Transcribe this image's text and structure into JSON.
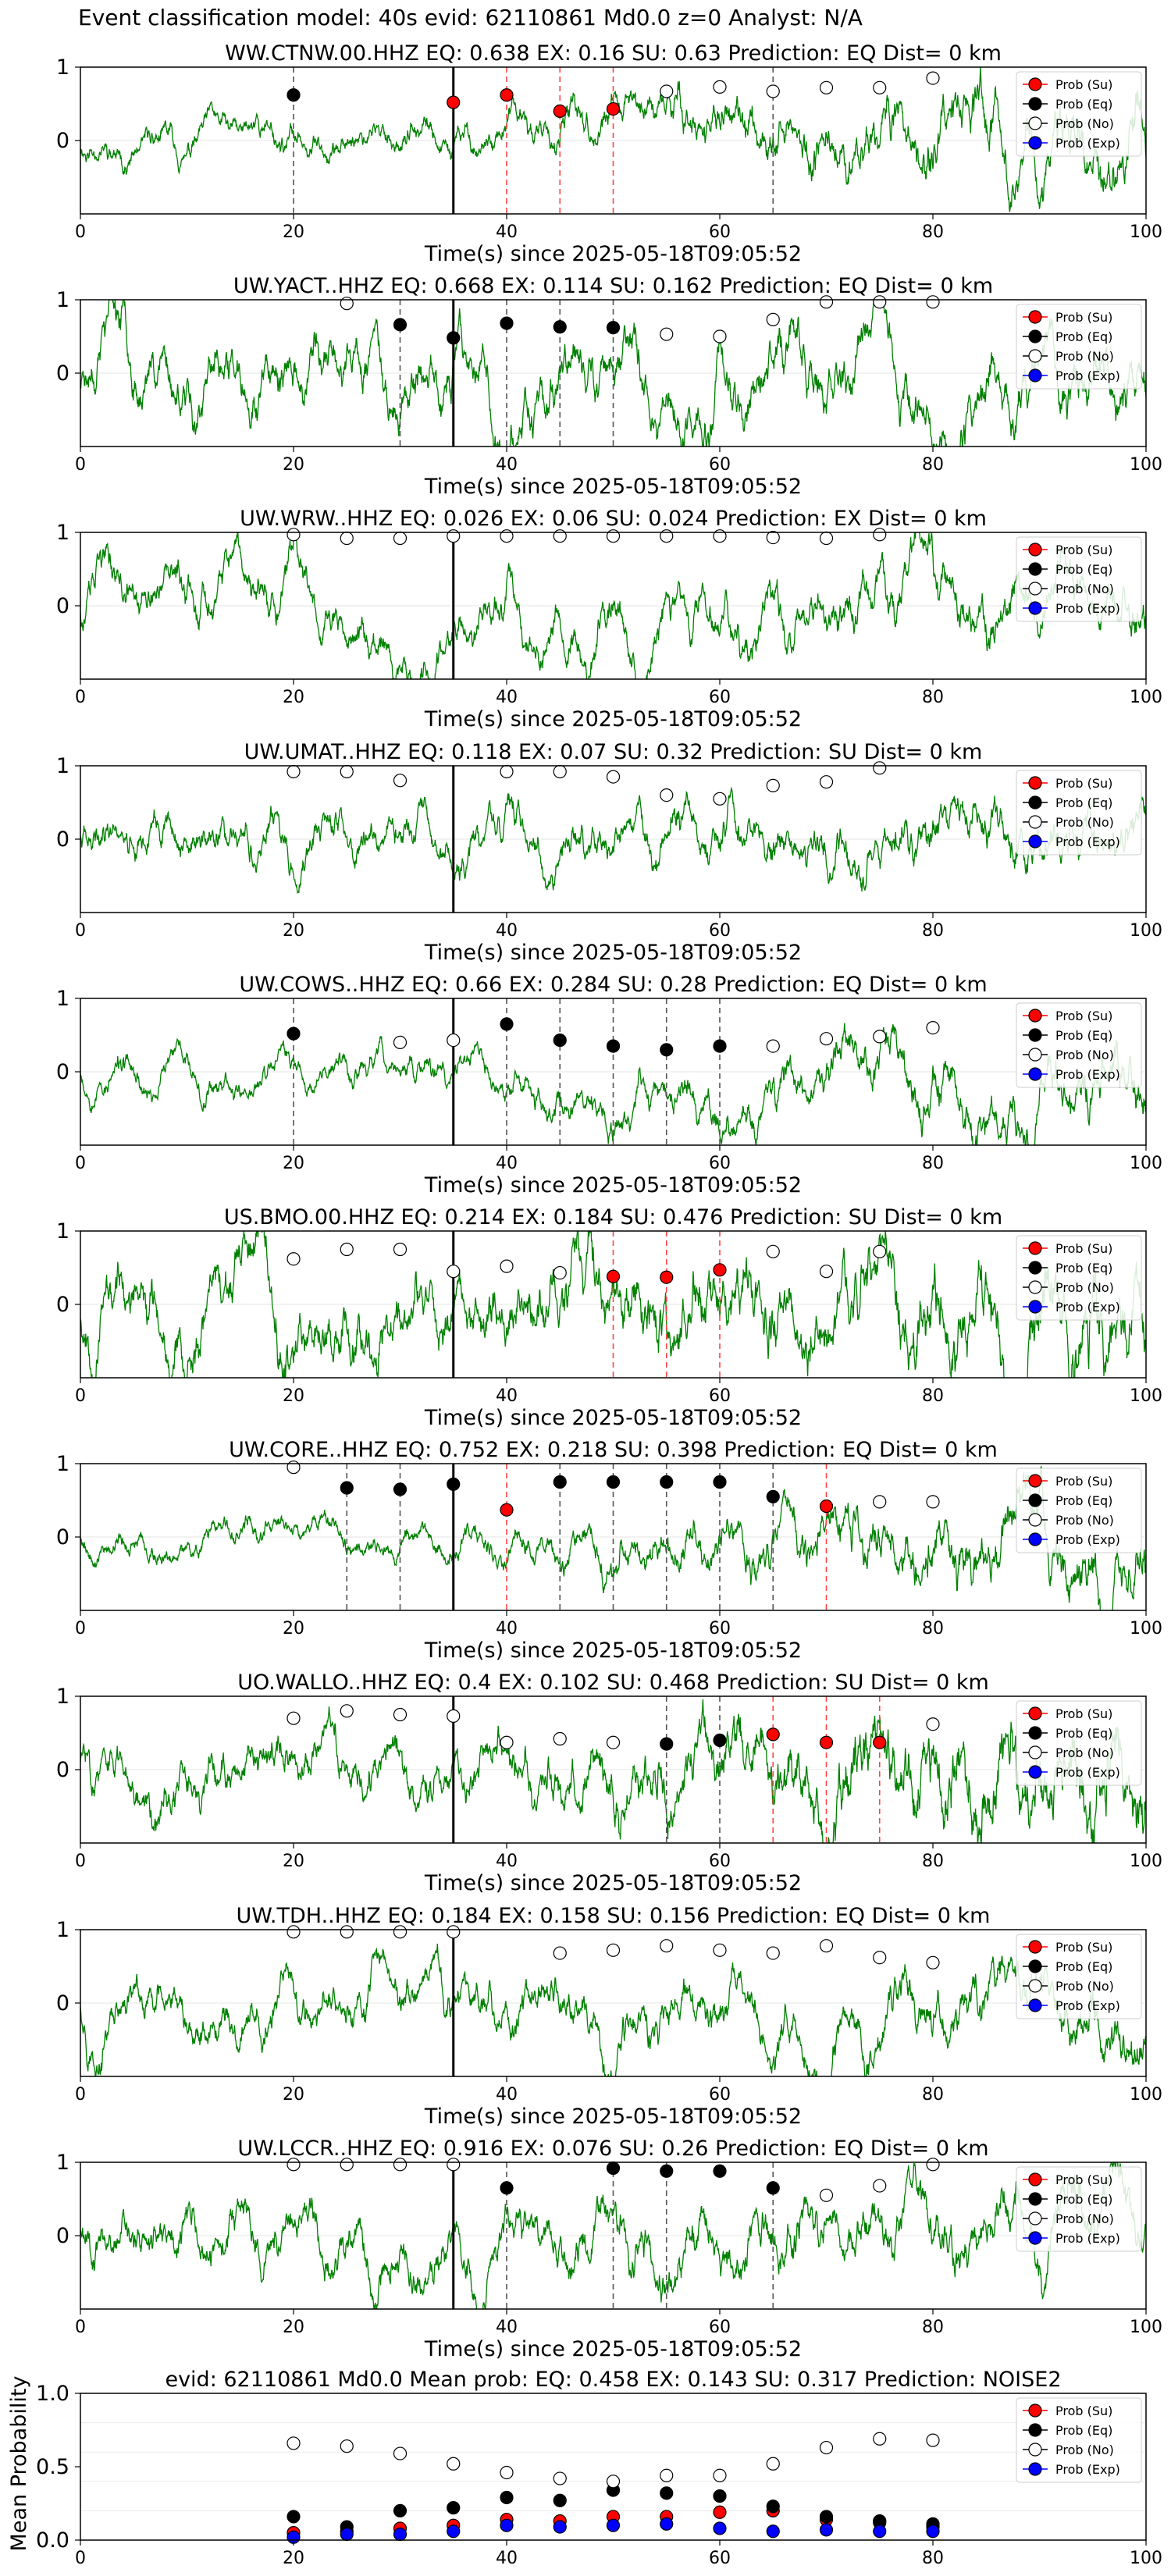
{
  "suptitle": "Event classification model: 40s evid: 62110861 Md0.0 z=0 Analyst: N/A",
  "common": {
    "xlabel": "Time(s) since 2025-05-18T09:05:52",
    "xlim": [
      0,
      100
    ],
    "xticks": [
      0,
      20,
      40,
      60,
      80,
      100
    ],
    "marker_times": [
      20,
      25,
      30,
      35,
      40,
      45,
      50,
      55,
      60,
      65,
      70,
      75,
      80
    ],
    "arrival_time": 35,
    "legend": [
      "Prob (Su)",
      "Prob (Eq)",
      "Prob (No)",
      "Prob (Exp)"
    ],
    "legend_position": "top-right",
    "colors": {
      "su": "#ff0000",
      "eq": "#000000",
      "no": "#ffffff",
      "exp": "#0000ff",
      "trace": "#008000",
      "eq_line": "#555555",
      "su_line": "#ff4444"
    }
  },
  "chart_data": [
    {
      "type": "line",
      "title": "WW.CTNW.00.HHZ   EQ: 0.638  EX: 0.16  SU: 0.63   Prediction: EQ    Dist= 0 km",
      "yticks": [
        0,
        1
      ],
      "ylim": [
        -1,
        1
      ],
      "trace": {
        "amplitude": 0.32,
        "seed": 11,
        "growth": 1.5,
        "hf": 0.5
      },
      "points": [
        {
          "t": 20,
          "cls": "eq",
          "p": 0.62
        },
        {
          "t": 35,
          "cls": "su",
          "p": 0.52
        },
        {
          "t": 40,
          "cls": "su",
          "p": 0.62
        },
        {
          "t": 45,
          "cls": "su",
          "p": 0.4
        },
        {
          "t": 50,
          "cls": "su",
          "p": 0.43
        },
        {
          "t": 55,
          "cls": "no",
          "p": 0.67
        },
        {
          "t": 60,
          "cls": "no",
          "p": 0.73
        },
        {
          "t": 65,
          "cls": "no",
          "p": 0.67
        },
        {
          "t": 70,
          "cls": "no",
          "p": 0.72
        },
        {
          "t": 75,
          "cls": "no",
          "p": 0.72
        },
        {
          "t": 80,
          "cls": "no",
          "p": 0.85
        }
      ],
      "eq_lines": [
        20,
        65
      ],
      "su_lines": [
        40,
        45,
        50
      ]
    },
    {
      "type": "line",
      "title": "UW.YACT..HHZ   EQ: 0.668  EX: 0.114  SU: 0.162   Prediction: EQ    Dist= 0 km",
      "yticks": [
        0,
        1
      ],
      "ylim": [
        -1,
        1
      ],
      "trace": {
        "amplitude": 0.75,
        "seed": 23,
        "growth": 0.2,
        "hf": 0.15
      },
      "points": [
        {
          "t": 25,
          "cls": "no",
          "p": 0.95
        },
        {
          "t": 30,
          "cls": "eq",
          "p": 0.66
        },
        {
          "t": 35,
          "cls": "eq",
          "p": 0.48
        },
        {
          "t": 40,
          "cls": "eq",
          "p": 0.68
        },
        {
          "t": 45,
          "cls": "eq",
          "p": 0.63
        },
        {
          "t": 50,
          "cls": "eq",
          "p": 0.62
        },
        {
          "t": 55,
          "cls": "no",
          "p": 0.53
        },
        {
          "t": 60,
          "cls": "no",
          "p": 0.5
        },
        {
          "t": 65,
          "cls": "no",
          "p": 0.73
        },
        {
          "t": 70,
          "cls": "no",
          "p": 0.97
        },
        {
          "t": 75,
          "cls": "no",
          "p": 0.97
        },
        {
          "t": 80,
          "cls": "no",
          "p": 0.97
        }
      ],
      "eq_lines": [
        30,
        40,
        45,
        50
      ],
      "su_lines": []
    },
    {
      "type": "line",
      "title": "UW.WRW..HHZ   EQ: 0.026  EX: 0.06  SU: 0.024   Prediction: EX    Dist= 0 km",
      "yticks": [
        0,
        1
      ],
      "ylim": [
        -1,
        1
      ],
      "trace": {
        "amplitude": 0.6,
        "seed": 37,
        "growth": 0.2,
        "hf": 0.25
      },
      "points": [
        {
          "t": 20,
          "cls": "no",
          "p": 0.97
        },
        {
          "t": 25,
          "cls": "no",
          "p": 0.92
        },
        {
          "t": 30,
          "cls": "no",
          "p": 0.92
        },
        {
          "t": 35,
          "cls": "no",
          "p": 0.95
        },
        {
          "t": 40,
          "cls": "no",
          "p": 0.95
        },
        {
          "t": 45,
          "cls": "no",
          "p": 0.95
        },
        {
          "t": 50,
          "cls": "no",
          "p": 0.95
        },
        {
          "t": 55,
          "cls": "no",
          "p": 0.95
        },
        {
          "t": 60,
          "cls": "no",
          "p": 0.95
        },
        {
          "t": 65,
          "cls": "no",
          "p": 0.93
        },
        {
          "t": 70,
          "cls": "no",
          "p": 0.92
        },
        {
          "t": 75,
          "cls": "no",
          "p": 0.97
        }
      ],
      "eq_lines": [],
      "su_lines": []
    },
    {
      "type": "line",
      "title": "UW.UMAT..HHZ   EQ: 0.118  EX: 0.07  SU: 0.32   Prediction: SU    Dist= 0 km",
      "yticks": [
        0,
        1
      ],
      "ylim": [
        -1,
        1
      ],
      "trace": {
        "amplitude": 0.5,
        "seed": 41,
        "growth": 0.3,
        "hf": 0.3
      },
      "points": [
        {
          "t": 20,
          "cls": "no",
          "p": 0.92
        },
        {
          "t": 25,
          "cls": "no",
          "p": 0.92
        },
        {
          "t": 30,
          "cls": "no",
          "p": 0.8
        },
        {
          "t": 40,
          "cls": "no",
          "p": 0.92
        },
        {
          "t": 45,
          "cls": "no",
          "p": 0.92
        },
        {
          "t": 50,
          "cls": "no",
          "p": 0.85
        },
        {
          "t": 55,
          "cls": "no",
          "p": 0.6
        },
        {
          "t": 60,
          "cls": "no",
          "p": 0.55
        },
        {
          "t": 65,
          "cls": "no",
          "p": 0.73
        },
        {
          "t": 70,
          "cls": "no",
          "p": 0.78
        },
        {
          "t": 75,
          "cls": "no",
          "p": 0.97
        }
      ],
      "eq_lines": [],
      "su_lines": []
    },
    {
      "type": "line",
      "title": "UW.COWS..HHZ   EQ: 0.66  EX: 0.284  SU: 0.28   Prediction: EQ    Dist= 0 km",
      "yticks": [
        0,
        1
      ],
      "ylim": [
        -1,
        1
      ],
      "trace": {
        "amplitude": 0.35,
        "seed": 53,
        "growth": 1.2,
        "hf": 0.4
      },
      "points": [
        {
          "t": 20,
          "cls": "eq",
          "p": 0.52
        },
        {
          "t": 30,
          "cls": "no",
          "p": 0.4
        },
        {
          "t": 35,
          "cls": "no",
          "p": 0.43
        },
        {
          "t": 40,
          "cls": "eq",
          "p": 0.65
        },
        {
          "t": 45,
          "cls": "eq",
          "p": 0.43
        },
        {
          "t": 50,
          "cls": "eq",
          "p": 0.35
        },
        {
          "t": 55,
          "cls": "eq",
          "p": 0.3
        },
        {
          "t": 60,
          "cls": "eq",
          "p": 0.35
        },
        {
          "t": 65,
          "cls": "no",
          "p": 0.35
        },
        {
          "t": 70,
          "cls": "no",
          "p": 0.45
        },
        {
          "t": 75,
          "cls": "no",
          "p": 0.48
        },
        {
          "t": 80,
          "cls": "no",
          "p": 0.6
        }
      ],
      "eq_lines": [
        20,
        40,
        45,
        50,
        55,
        60
      ],
      "su_lines": []
    },
    {
      "type": "line",
      "title": "US.BMO.00.HHZ   EQ: 0.214  EX: 0.184  SU: 0.476   Prediction: SU    Dist= 0 km",
      "yticks": [
        0,
        1
      ],
      "ylim": [
        -1,
        1
      ],
      "trace": {
        "amplitude": 0.55,
        "seed": 67,
        "growth": 0.6,
        "hf": 0.8
      },
      "points": [
        {
          "t": 20,
          "cls": "no",
          "p": 0.62
        },
        {
          "t": 25,
          "cls": "no",
          "p": 0.75
        },
        {
          "t": 30,
          "cls": "no",
          "p": 0.75
        },
        {
          "t": 35,
          "cls": "no",
          "p": 0.45
        },
        {
          "t": 40,
          "cls": "no",
          "p": 0.52
        },
        {
          "t": 45,
          "cls": "no",
          "p": 0.43
        },
        {
          "t": 50,
          "cls": "su",
          "p": 0.38
        },
        {
          "t": 55,
          "cls": "su",
          "p": 0.37
        },
        {
          "t": 60,
          "cls": "su",
          "p": 0.47
        },
        {
          "t": 65,
          "cls": "no",
          "p": 0.72
        },
        {
          "t": 70,
          "cls": "no",
          "p": 0.45
        },
        {
          "t": 75,
          "cls": "no",
          "p": 0.72
        }
      ],
      "eq_lines": [],
      "su_lines": [
        50,
        55,
        60
      ]
    },
    {
      "type": "line",
      "title": "UW.CORE..HHZ   EQ: 0.752  EX: 0.218  SU: 0.398   Prediction: EQ    Dist= 0 km",
      "yticks": [
        0,
        1
      ],
      "ylim": [
        -1,
        1
      ],
      "trace": {
        "amplitude": 0.28,
        "seed": 79,
        "growth": 2.0,
        "hf": 0.5
      },
      "points": [
        {
          "t": 20,
          "cls": "no",
          "p": 0.95
        },
        {
          "t": 25,
          "cls": "eq",
          "p": 0.67
        },
        {
          "t": 30,
          "cls": "eq",
          "p": 0.65
        },
        {
          "t": 35,
          "cls": "eq",
          "p": 0.72
        },
        {
          "t": 40,
          "cls": "su",
          "p": 0.37
        },
        {
          "t": 45,
          "cls": "eq",
          "p": 0.75
        },
        {
          "t": 50,
          "cls": "eq",
          "p": 0.75
        },
        {
          "t": 55,
          "cls": "eq",
          "p": 0.75
        },
        {
          "t": 60,
          "cls": "eq",
          "p": 0.75
        },
        {
          "t": 65,
          "cls": "eq",
          "p": 0.55
        },
        {
          "t": 70,
          "cls": "su",
          "p": 0.42
        },
        {
          "t": 75,
          "cls": "no",
          "p": 0.48
        },
        {
          "t": 80,
          "cls": "no",
          "p": 0.48
        }
      ],
      "eq_lines": [
        25,
        30,
        45,
        50,
        55,
        60,
        65
      ],
      "su_lines": [
        40,
        70
      ]
    },
    {
      "type": "line",
      "title": "UO.WALLO..HHZ   EQ: 0.4  EX: 0.102  SU: 0.468   Prediction: SU    Dist= 0 km",
      "yticks": [
        0,
        1
      ],
      "ylim": [
        -1,
        1
      ],
      "trace": {
        "amplitude": 0.42,
        "seed": 83,
        "growth": 1.3,
        "hf": 0.8
      },
      "points": [
        {
          "t": 20,
          "cls": "no",
          "p": 0.7
        },
        {
          "t": 25,
          "cls": "no",
          "p": 0.8
        },
        {
          "t": 30,
          "cls": "no",
          "p": 0.75
        },
        {
          "t": 35,
          "cls": "no",
          "p": 0.73
        },
        {
          "t": 40,
          "cls": "no",
          "p": 0.37
        },
        {
          "t": 45,
          "cls": "no",
          "p": 0.42
        },
        {
          "t": 50,
          "cls": "no",
          "p": 0.37
        },
        {
          "t": 55,
          "cls": "eq",
          "p": 0.35
        },
        {
          "t": 60,
          "cls": "eq",
          "p": 0.4
        },
        {
          "t": 65,
          "cls": "su",
          "p": 0.48
        },
        {
          "t": 70,
          "cls": "su",
          "p": 0.37
        },
        {
          "t": 75,
          "cls": "su",
          "p": 0.37
        },
        {
          "t": 80,
          "cls": "no",
          "p": 0.62
        }
      ],
      "eq_lines": [
        55,
        60
      ],
      "su_lines": [
        65,
        70,
        75
      ]
    },
    {
      "type": "line",
      "title": "UW.TDH..HHZ   EQ: 0.184  EX: 0.158  SU: 0.156   Prediction: EQ    Dist= 0 km",
      "yticks": [
        0,
        1
      ],
      "ylim": [
        -1,
        1
      ],
      "trace": {
        "amplitude": 0.55,
        "seed": 97,
        "growth": 0.4,
        "hf": 0.3
      },
      "points": [
        {
          "t": 20,
          "cls": "no",
          "p": 0.97
        },
        {
          "t": 25,
          "cls": "no",
          "p": 0.97
        },
        {
          "t": 30,
          "cls": "no",
          "p": 0.97
        },
        {
          "t": 35,
          "cls": "no",
          "p": 0.97
        },
        {
          "t": 45,
          "cls": "no",
          "p": 0.68
        },
        {
          "t": 50,
          "cls": "no",
          "p": 0.72
        },
        {
          "t": 55,
          "cls": "no",
          "p": 0.78
        },
        {
          "t": 60,
          "cls": "no",
          "p": 0.72
        },
        {
          "t": 65,
          "cls": "no",
          "p": 0.68
        },
        {
          "t": 70,
          "cls": "no",
          "p": 0.78
        },
        {
          "t": 75,
          "cls": "no",
          "p": 0.62
        },
        {
          "t": 80,
          "cls": "no",
          "p": 0.55
        }
      ],
      "eq_lines": [],
      "su_lines": []
    },
    {
      "type": "line",
      "title": "UW.LCCR..HHZ   EQ: 0.916  EX: 0.076  SU: 0.26   Prediction: EQ    Dist= 0 km",
      "yticks": [
        0,
        1
      ],
      "ylim": [
        -1,
        1
      ],
      "trace": {
        "amplitude": 0.6,
        "seed": 101,
        "growth": 0.3,
        "hf": 0.3
      },
      "points": [
        {
          "t": 20,
          "cls": "no",
          "p": 0.97
        },
        {
          "t": 25,
          "cls": "no",
          "p": 0.97
        },
        {
          "t": 30,
          "cls": "no",
          "p": 0.97
        },
        {
          "t": 35,
          "cls": "no",
          "p": 0.97
        },
        {
          "t": 40,
          "cls": "eq",
          "p": 0.65
        },
        {
          "t": 50,
          "cls": "eq",
          "p": 0.92
        },
        {
          "t": 55,
          "cls": "eq",
          "p": 0.88
        },
        {
          "t": 60,
          "cls": "eq",
          "p": 0.88
        },
        {
          "t": 65,
          "cls": "eq",
          "p": 0.65
        },
        {
          "t": 70,
          "cls": "no",
          "p": 0.55
        },
        {
          "t": 75,
          "cls": "no",
          "p": 0.68
        },
        {
          "t": 80,
          "cls": "no",
          "p": 0.97
        }
      ],
      "eq_lines": [
        40,
        50,
        55,
        65
      ],
      "su_lines": []
    }
  ],
  "mean_chart": {
    "type": "scatter",
    "title": "evid: 62110861  Md0.0   Mean prob:   EQ: 0.458  EX: 0.143  SU: 0.317   Prediction: NOISE2",
    "ylabel": "Mean Probability",
    "xticks": [
      0,
      20,
      40,
      60,
      80,
      100
    ],
    "yticks": [
      0.0,
      0.5,
      1.0
    ],
    "ylim": [
      0,
      1
    ],
    "xlim": [
      0,
      100
    ],
    "x": [
      20,
      25,
      30,
      35,
      40,
      45,
      50,
      55,
      60,
      65,
      70,
      75,
      80
    ],
    "series": [
      {
        "name": "Prob (Su)",
        "cls": "su",
        "values": [
          0.05,
          0.06,
          0.08,
          0.1,
          0.14,
          0.13,
          0.16,
          0.16,
          0.19,
          0.2,
          0.14,
          0.12,
          0.09
        ]
      },
      {
        "name": "Prob (Eq)",
        "cls": "eq",
        "values": [
          0.16,
          0.09,
          0.2,
          0.22,
          0.29,
          0.27,
          0.34,
          0.32,
          0.3,
          0.23,
          0.16,
          0.13,
          0.11
        ]
      },
      {
        "name": "Prob (No)",
        "cls": "no",
        "values": [
          0.66,
          0.64,
          0.59,
          0.52,
          0.46,
          0.42,
          0.4,
          0.44,
          0.44,
          0.52,
          0.63,
          0.69,
          0.68
        ]
      },
      {
        "name": "Prob (Exp)",
        "cls": "exp",
        "values": [
          0.02,
          0.04,
          0.04,
          0.06,
          0.1,
          0.09,
          0.1,
          0.11,
          0.08,
          0.06,
          0.07,
          0.06,
          0.06
        ]
      }
    ]
  }
}
